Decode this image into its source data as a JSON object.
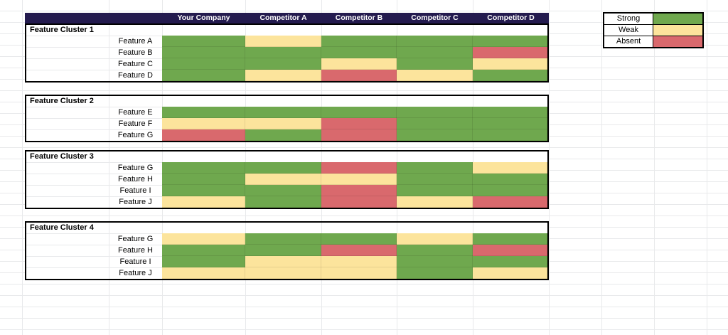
{
  "sheet": {
    "columns": [
      "Your Company",
      "Competitor A",
      "Competitor B",
      "Competitor C",
      "Competitor D"
    ],
    "clusters": [
      {
        "label": "Feature Cluster 1",
        "rows": [
          {
            "feature": "Feature A",
            "values": [
              "strong",
              "weak",
              "strong",
              "strong",
              "strong"
            ]
          },
          {
            "feature": "Feature B",
            "values": [
              "strong",
              "strong",
              "strong",
              "strong",
              "absent"
            ]
          },
          {
            "feature": "Feature C",
            "values": [
              "strong",
              "strong",
              "weak",
              "strong",
              "weak"
            ]
          },
          {
            "feature": "Feature D",
            "values": [
              "strong",
              "weak",
              "absent",
              "weak",
              "strong"
            ]
          }
        ]
      },
      {
        "label": "Feature Cluster 2",
        "rows": [
          {
            "feature": "Feature E",
            "values": [
              "strong",
              "strong",
              "strong",
              "strong",
              "strong"
            ]
          },
          {
            "feature": "Feature F",
            "values": [
              "weak",
              "weak",
              "absent",
              "strong",
              "strong"
            ]
          },
          {
            "feature": "Feature G",
            "values": [
              "absent",
              "strong",
              "absent",
              "strong",
              "strong"
            ]
          }
        ]
      },
      {
        "label": "Feature Cluster 3",
        "rows": [
          {
            "feature": "Feature G",
            "values": [
              "strong",
              "strong",
              "absent",
              "strong",
              "weak"
            ]
          },
          {
            "feature": "Feature H",
            "values": [
              "strong",
              "weak",
              "weak",
              "strong",
              "strong"
            ]
          },
          {
            "feature": "Feature I",
            "values": [
              "strong",
              "strong",
              "absent",
              "strong",
              "strong"
            ]
          },
          {
            "feature": "Feature J",
            "values": [
              "weak",
              "strong",
              "absent",
              "weak",
              "absent"
            ]
          }
        ]
      },
      {
        "label": "Feature Cluster 4",
        "rows": [
          {
            "feature": "Feature G",
            "values": [
              "weak",
              "strong",
              "strong",
              "weak",
              "strong"
            ]
          },
          {
            "feature": "Feature H",
            "values": [
              "strong",
              "strong",
              "absent",
              "strong",
              "absent"
            ]
          },
          {
            "feature": "Feature I",
            "values": [
              "strong",
              "weak",
              "weak",
              "strong",
              "strong"
            ]
          },
          {
            "feature": "Feature J",
            "values": [
              "weak",
              "weak",
              "weak",
              "strong",
              "weak"
            ]
          }
        ]
      }
    ],
    "legend": [
      {
        "label": "Strong",
        "key": "strong"
      },
      {
        "label": "Weak",
        "key": "weak"
      },
      {
        "label": "Absent",
        "key": "absent"
      }
    ],
    "colors": {
      "strong": "#6fa84e",
      "weak": "#fce49c",
      "absent": "#d9696d",
      "header_bg": "#231a4e",
      "header_text": "#ffffff",
      "gridline": "#e8e9eb",
      "border": "#000000"
    }
  }
}
